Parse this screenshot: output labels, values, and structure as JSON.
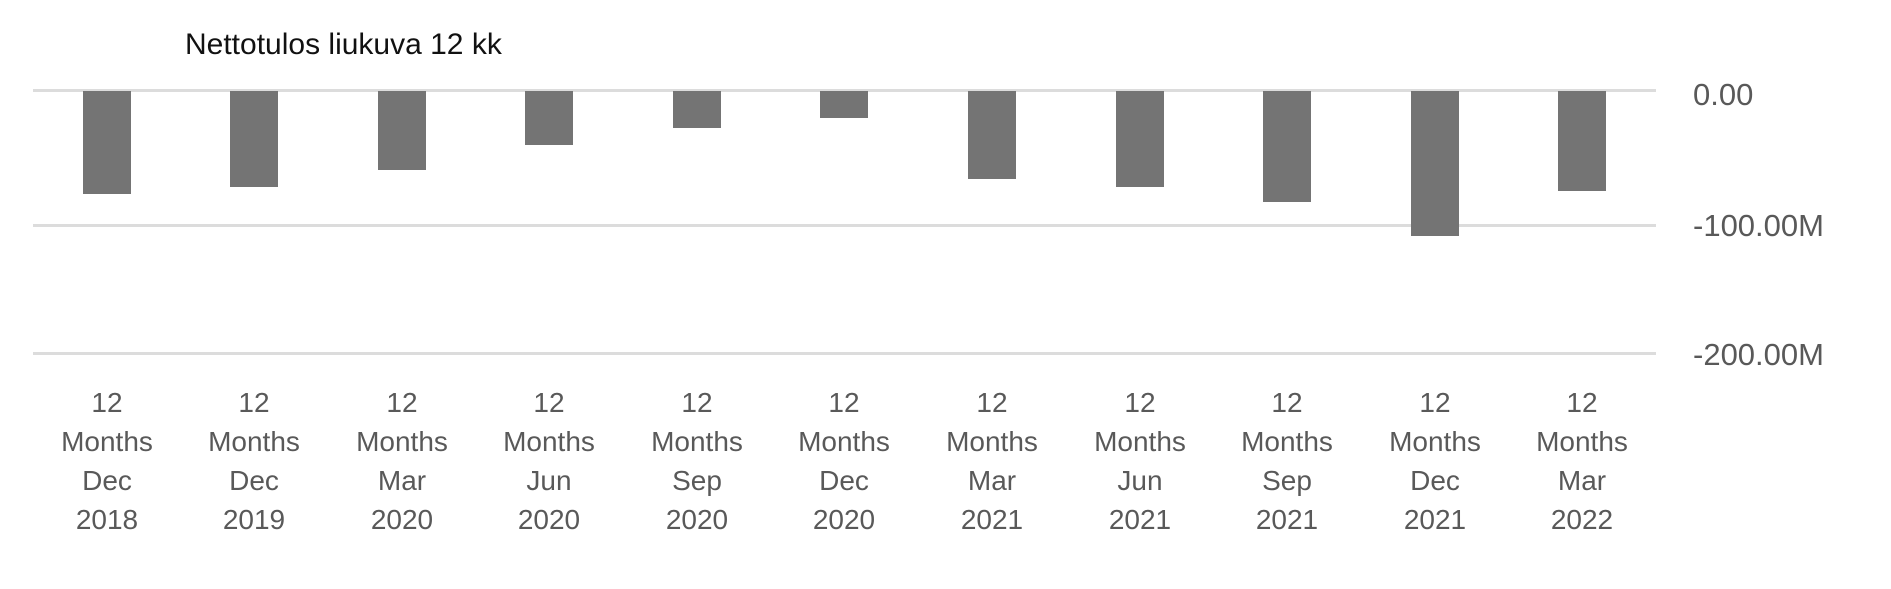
{
  "chart_data": {
    "type": "bar",
    "title": "Nettotulos liukuva 12 kk",
    "categories": [
      "12 Months Dec 2018",
      "12 Months Dec 2019",
      "12 Months Mar 2020",
      "12 Months Jun 2020",
      "12 Months Sep 2020",
      "12 Months Dec 2020",
      "12 Months Mar 2021",
      "12 Months Jun 2021",
      "12 Months Sep 2021",
      "12 Months Dec 2021",
      "12 Months Mar 2022"
    ],
    "category_lines": [
      [
        "12",
        "Months",
        "Dec",
        "2018"
      ],
      [
        "12",
        "Months",
        "Dec",
        "2019"
      ],
      [
        "12",
        "Months",
        "Mar",
        "2020"
      ],
      [
        "12",
        "Months",
        "Jun",
        "2020"
      ],
      [
        "12",
        "Months",
        "Sep",
        "2020"
      ],
      [
        "12",
        "Months",
        "Dec",
        "2020"
      ],
      [
        "12",
        "Months",
        "Mar",
        "2021"
      ],
      [
        "12",
        "Months",
        "Jun",
        "2021"
      ],
      [
        "12",
        "Months",
        "Sep",
        "2021"
      ],
      [
        "12",
        "Months",
        "Dec",
        "2021"
      ],
      [
        "12",
        "Months",
        "Mar",
        "2022"
      ]
    ],
    "values": [
      -77000000,
      -72000000,
      -59000000,
      -41000000,
      -28000000,
      -21000000,
      -66000000,
      -72000000,
      -83000000,
      -108000000,
      -75000000
    ],
    "values_millions": [
      -77,
      -72,
      -59,
      -41,
      -28,
      -21,
      -66,
      -72,
      -83,
      -108,
      -75
    ],
    "y_ticks": [
      {
        "label": "0.00",
        "value": 0
      },
      {
        "label": "-100.00M",
        "value": -100000000
      },
      {
        "label": "-200.00M",
        "value": -200000000
      }
    ],
    "ylim": [
      -200000000,
      0
    ],
    "xlabel": "",
    "ylabel": "",
    "legend": "none",
    "grid": "horizontal",
    "bar_color": "#747474",
    "gridline_color": "#dcdcdc",
    "axis_text_color": "#595959",
    "title_color": "#111111"
  }
}
